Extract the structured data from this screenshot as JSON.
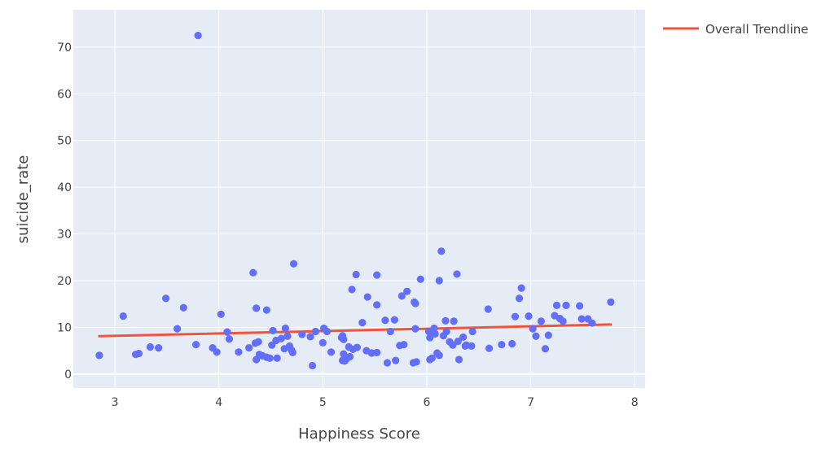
{
  "chart_data": {
    "type": "scatter",
    "xlabel": "Happiness Score",
    "ylabel": "suicide_rate",
    "xlim": [
      2.6,
      8.1
    ],
    "ylim": [
      -3,
      78
    ],
    "xticks": [
      3,
      4,
      5,
      6,
      7,
      8
    ],
    "yticks": [
      0,
      10,
      20,
      30,
      40,
      50,
      60,
      70
    ],
    "grid": true,
    "legend_position": "top-right",
    "colors": {
      "points": "#636efa",
      "trendline": "#ef553b",
      "plot_bg": "#e5ecf6"
    },
    "trendline": {
      "name": "Overall Trendline",
      "x": [
        2.85,
        7.77
      ],
      "y": [
        8.1,
        10.6
      ]
    },
    "points": [
      [
        2.85,
        4.0
      ],
      [
        3.08,
        12.4
      ],
      [
        3.2,
        4.2
      ],
      [
        3.23,
        4.4
      ],
      [
        3.34,
        5.8
      ],
      [
        3.42,
        5.6
      ],
      [
        3.49,
        16.2
      ],
      [
        3.6,
        9.7
      ],
      [
        3.66,
        14.2
      ],
      [
        3.78,
        6.3
      ],
      [
        3.8,
        72.5
      ],
      [
        3.94,
        5.6
      ],
      [
        3.98,
        4.7
      ],
      [
        4.02,
        12.8
      ],
      [
        4.08,
        9.0
      ],
      [
        4.1,
        7.5
      ],
      [
        4.19,
        4.7
      ],
      [
        4.29,
        5.6
      ],
      [
        4.33,
        21.7
      ],
      [
        4.35,
        6.6
      ],
      [
        4.36,
        14.1
      ],
      [
        4.36,
        3.1
      ],
      [
        4.38,
        6.9
      ],
      [
        4.39,
        4.2
      ],
      [
        4.42,
        3.9
      ],
      [
        4.46,
        13.7
      ],
      [
        4.46,
        3.6
      ],
      [
        4.49,
        3.4
      ],
      [
        4.51,
        6.2
      ],
      [
        4.52,
        9.3
      ],
      [
        4.55,
        7.2
      ],
      [
        4.56,
        3.4
      ],
      [
        4.6,
        7.6
      ],
      [
        4.63,
        5.4
      ],
      [
        4.64,
        9.8
      ],
      [
        4.66,
        8.1
      ],
      [
        4.68,
        6.0
      ],
      [
        4.7,
        5.1
      ],
      [
        4.71,
        4.6
      ],
      [
        4.72,
        23.6
      ],
      [
        4.8,
        8.5
      ],
      [
        4.88,
        8.0
      ],
      [
        4.9,
        1.8
      ],
      [
        4.93,
        9.1
      ],
      [
        5.0,
        6.7
      ],
      [
        5.01,
        9.8
      ],
      [
        5.04,
        9.1
      ],
      [
        5.08,
        4.7
      ],
      [
        5.18,
        7.8
      ],
      [
        5.19,
        8.2
      ],
      [
        5.19,
        2.9
      ],
      [
        5.2,
        7.4
      ],
      [
        5.2,
        4.3
      ],
      [
        5.21,
        2.8
      ],
      [
        5.23,
        3.3
      ],
      [
        5.25,
        5.8
      ],
      [
        5.26,
        3.7
      ],
      [
        5.28,
        18.1
      ],
      [
        5.29,
        5.3
      ],
      [
        5.32,
        21.3
      ],
      [
        5.33,
        5.7
      ],
      [
        5.38,
        11.0
      ],
      [
        5.42,
        5.0
      ],
      [
        5.43,
        16.5
      ],
      [
        5.47,
        4.5
      ],
      [
        5.52,
        21.2
      ],
      [
        5.52,
        14.8
      ],
      [
        5.52,
        4.6
      ],
      [
        5.6,
        11.5
      ],
      [
        5.62,
        2.4
      ],
      [
        5.65,
        9.1
      ],
      [
        5.69,
        11.6
      ],
      [
        5.7,
        2.9
      ],
      [
        5.74,
        6.1
      ],
      [
        5.76,
        16.7
      ],
      [
        5.78,
        6.3
      ],
      [
        5.81,
        17.7
      ],
      [
        5.87,
        2.4
      ],
      [
        5.88,
        15.4
      ],
      [
        5.89,
        15.1
      ],
      [
        5.89,
        9.7
      ],
      [
        5.9,
        2.6
      ],
      [
        5.94,
        20.3
      ],
      [
        6.02,
        9.1
      ],
      [
        6.03,
        7.8
      ],
      [
        6.03,
        3.1
      ],
      [
        6.05,
        3.4
      ],
      [
        6.07,
        9.8
      ],
      [
        6.08,
        8.6
      ],
      [
        6.1,
        4.5
      ],
      [
        6.12,
        20.0
      ],
      [
        6.12,
        4.0
      ],
      [
        6.14,
        26.3
      ],
      [
        6.16,
        8.2
      ],
      [
        6.18,
        11.4
      ],
      [
        6.19,
        9.1
      ],
      [
        6.22,
        6.9
      ],
      [
        6.25,
        6.2
      ],
      [
        6.26,
        11.3
      ],
      [
        6.29,
        21.4
      ],
      [
        6.3,
        7.0
      ],
      [
        6.31,
        3.1
      ],
      [
        6.35,
        7.9
      ],
      [
        6.37,
        6.0
      ],
      [
        6.38,
        6.2
      ],
      [
        6.43,
        6.0
      ],
      [
        6.44,
        9.1
      ],
      [
        6.59,
        13.9
      ],
      [
        6.6,
        5.5
      ],
      [
        6.72,
        6.3
      ],
      [
        6.82,
        6.5
      ],
      [
        6.85,
        12.3
      ],
      [
        6.89,
        16.2
      ],
      [
        6.91,
        18.4
      ],
      [
        6.98,
        12.4
      ],
      [
        7.02,
        9.7
      ],
      [
        7.05,
        8.1
      ],
      [
        7.1,
        11.3
      ],
      [
        7.14,
        5.4
      ],
      [
        7.17,
        8.3
      ],
      [
        7.23,
        12.5
      ],
      [
        7.25,
        14.7
      ],
      [
        7.28,
        11.9
      ],
      [
        7.31,
        11.3
      ],
      [
        7.34,
        14.7
      ],
      [
        7.47,
        14.6
      ],
      [
        7.49,
        11.8
      ],
      [
        7.55,
        11.8
      ],
      [
        7.59,
        10.9
      ],
      [
        7.77,
        15.4
      ]
    ]
  }
}
